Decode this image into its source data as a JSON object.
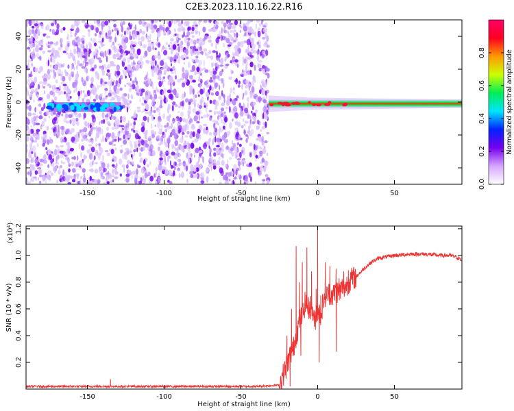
{
  "title": "C2E3.2023.110.16.22.R16",
  "chart_data": [
    {
      "type": "heatmap",
      "xlabel": "Height of straight line (km)",
      "ylabel": "Frequency (Hz)",
      "xlim": [
        -190,
        94
      ],
      "ylim": [
        -50,
        50
      ],
      "xticks": [
        -150,
        -100,
        -50,
        0,
        50
      ],
      "yticks": [
        -40,
        -20,
        0,
        20,
        40
      ],
      "colorbar": {
        "label": "Normalized spectral amplitude",
        "range": [
          0,
          1
        ],
        "ticks": [
          0.0,
          0.2,
          0.4,
          0.6,
          0.8
        ],
        "colors": [
          "#ffffff",
          "#d6a6ff",
          "#7700ee",
          "#0022ff",
          "#00e5ff",
          "#00ee55",
          "#ccff00",
          "#ff9900",
          "#ff0022",
          "#ff0066"
        ]
      },
      "features": [
        {
          "name": "noise-region",
          "x_range": [
            -190,
            -32
          ],
          "y_range": [
            -50,
            50
          ],
          "amplitude": 0.12
        },
        {
          "name": "weak-signal-band",
          "x_range": [
            -175,
            -128
          ],
          "frequency": -3,
          "amplitude": 0.3
        },
        {
          "name": "strong-signal-band",
          "x_range": [
            -32,
            94
          ],
          "frequency": -1,
          "amplitude": 0.85
        }
      ]
    },
    {
      "type": "line",
      "xlabel": "Height of straight line (km)",
      "ylabel": "SNR (10 * v/v)",
      "y_multiplier": "(x10⁴)",
      "xlim": [
        -190,
        94
      ],
      "ylim": [
        0,
        1.22
      ],
      "xticks": [
        -150,
        -100,
        -50,
        0,
        50
      ],
      "yticks": [
        0.2,
        0.4,
        0.6,
        0.8,
        1.0,
        1.2
      ],
      "grid": false,
      "series": [
        {
          "color": "#ee3333",
          "x": [
            -190,
            -150,
            -110,
            -70,
            -40,
            -25,
            -20,
            -18,
            -16,
            -14,
            -12,
            -10,
            -8,
            -6,
            -4,
            -2,
            0,
            2,
            4,
            6,
            8,
            10,
            12,
            14,
            16,
            18,
            20,
            22,
            25,
            30,
            35,
            40,
            50,
            60,
            70,
            80,
            86,
            90,
            94
          ],
          "values": [
            0.02,
            0.02,
            0.02,
            0.02,
            0.02,
            0.03,
            0.18,
            0.25,
            0.3,
            0.4,
            0.5,
            0.55,
            0.65,
            0.6,
            0.62,
            0.5,
            0.6,
            0.55,
            0.68,
            0.7,
            0.72,
            0.7,
            0.74,
            0.72,
            0.76,
            0.76,
            0.8,
            0.82,
            0.84,
            0.9,
            0.95,
            0.98,
            1.0,
            1.01,
            1.01,
            1.0,
            1.0,
            0.99,
            0.96
          ],
          "spikes": [
            {
              "x": -20,
              "y": 0.4
            },
            {
              "x": -17,
              "y": 0.6
            },
            {
              "x": -14,
              "y": 1.07
            },
            {
              "x": -12,
              "y": 0.8
            },
            {
              "x": -10,
              "y": 0.95
            },
            {
              "x": -7,
              "y": 1.06
            },
            {
              "x": -4,
              "y": 0.88
            },
            {
              "x": -1,
              "y": 0.75
            },
            {
              "x": 0,
              "y": 1.22
            },
            {
              "x": 2,
              "y": 0.7
            },
            {
              "x": 5,
              "y": 0.95
            },
            {
              "x": 8,
              "y": 0.92
            },
            {
              "x": 12,
              "y": 0.9
            },
            {
              "x": 14,
              "y": 0.83
            },
            {
              "x": 17,
              "y": 0.88
            },
            {
              "x": 20,
              "y": 0.89
            }
          ],
          "dips": [
            {
              "x": -18,
              "y": 0.02
            },
            {
              "x": -11,
              "y": 0.25
            },
            {
              "x": 1,
              "y": 0.2
            },
            {
              "x": 12,
              "y": 0.28
            }
          ]
        }
      ]
    }
  ]
}
